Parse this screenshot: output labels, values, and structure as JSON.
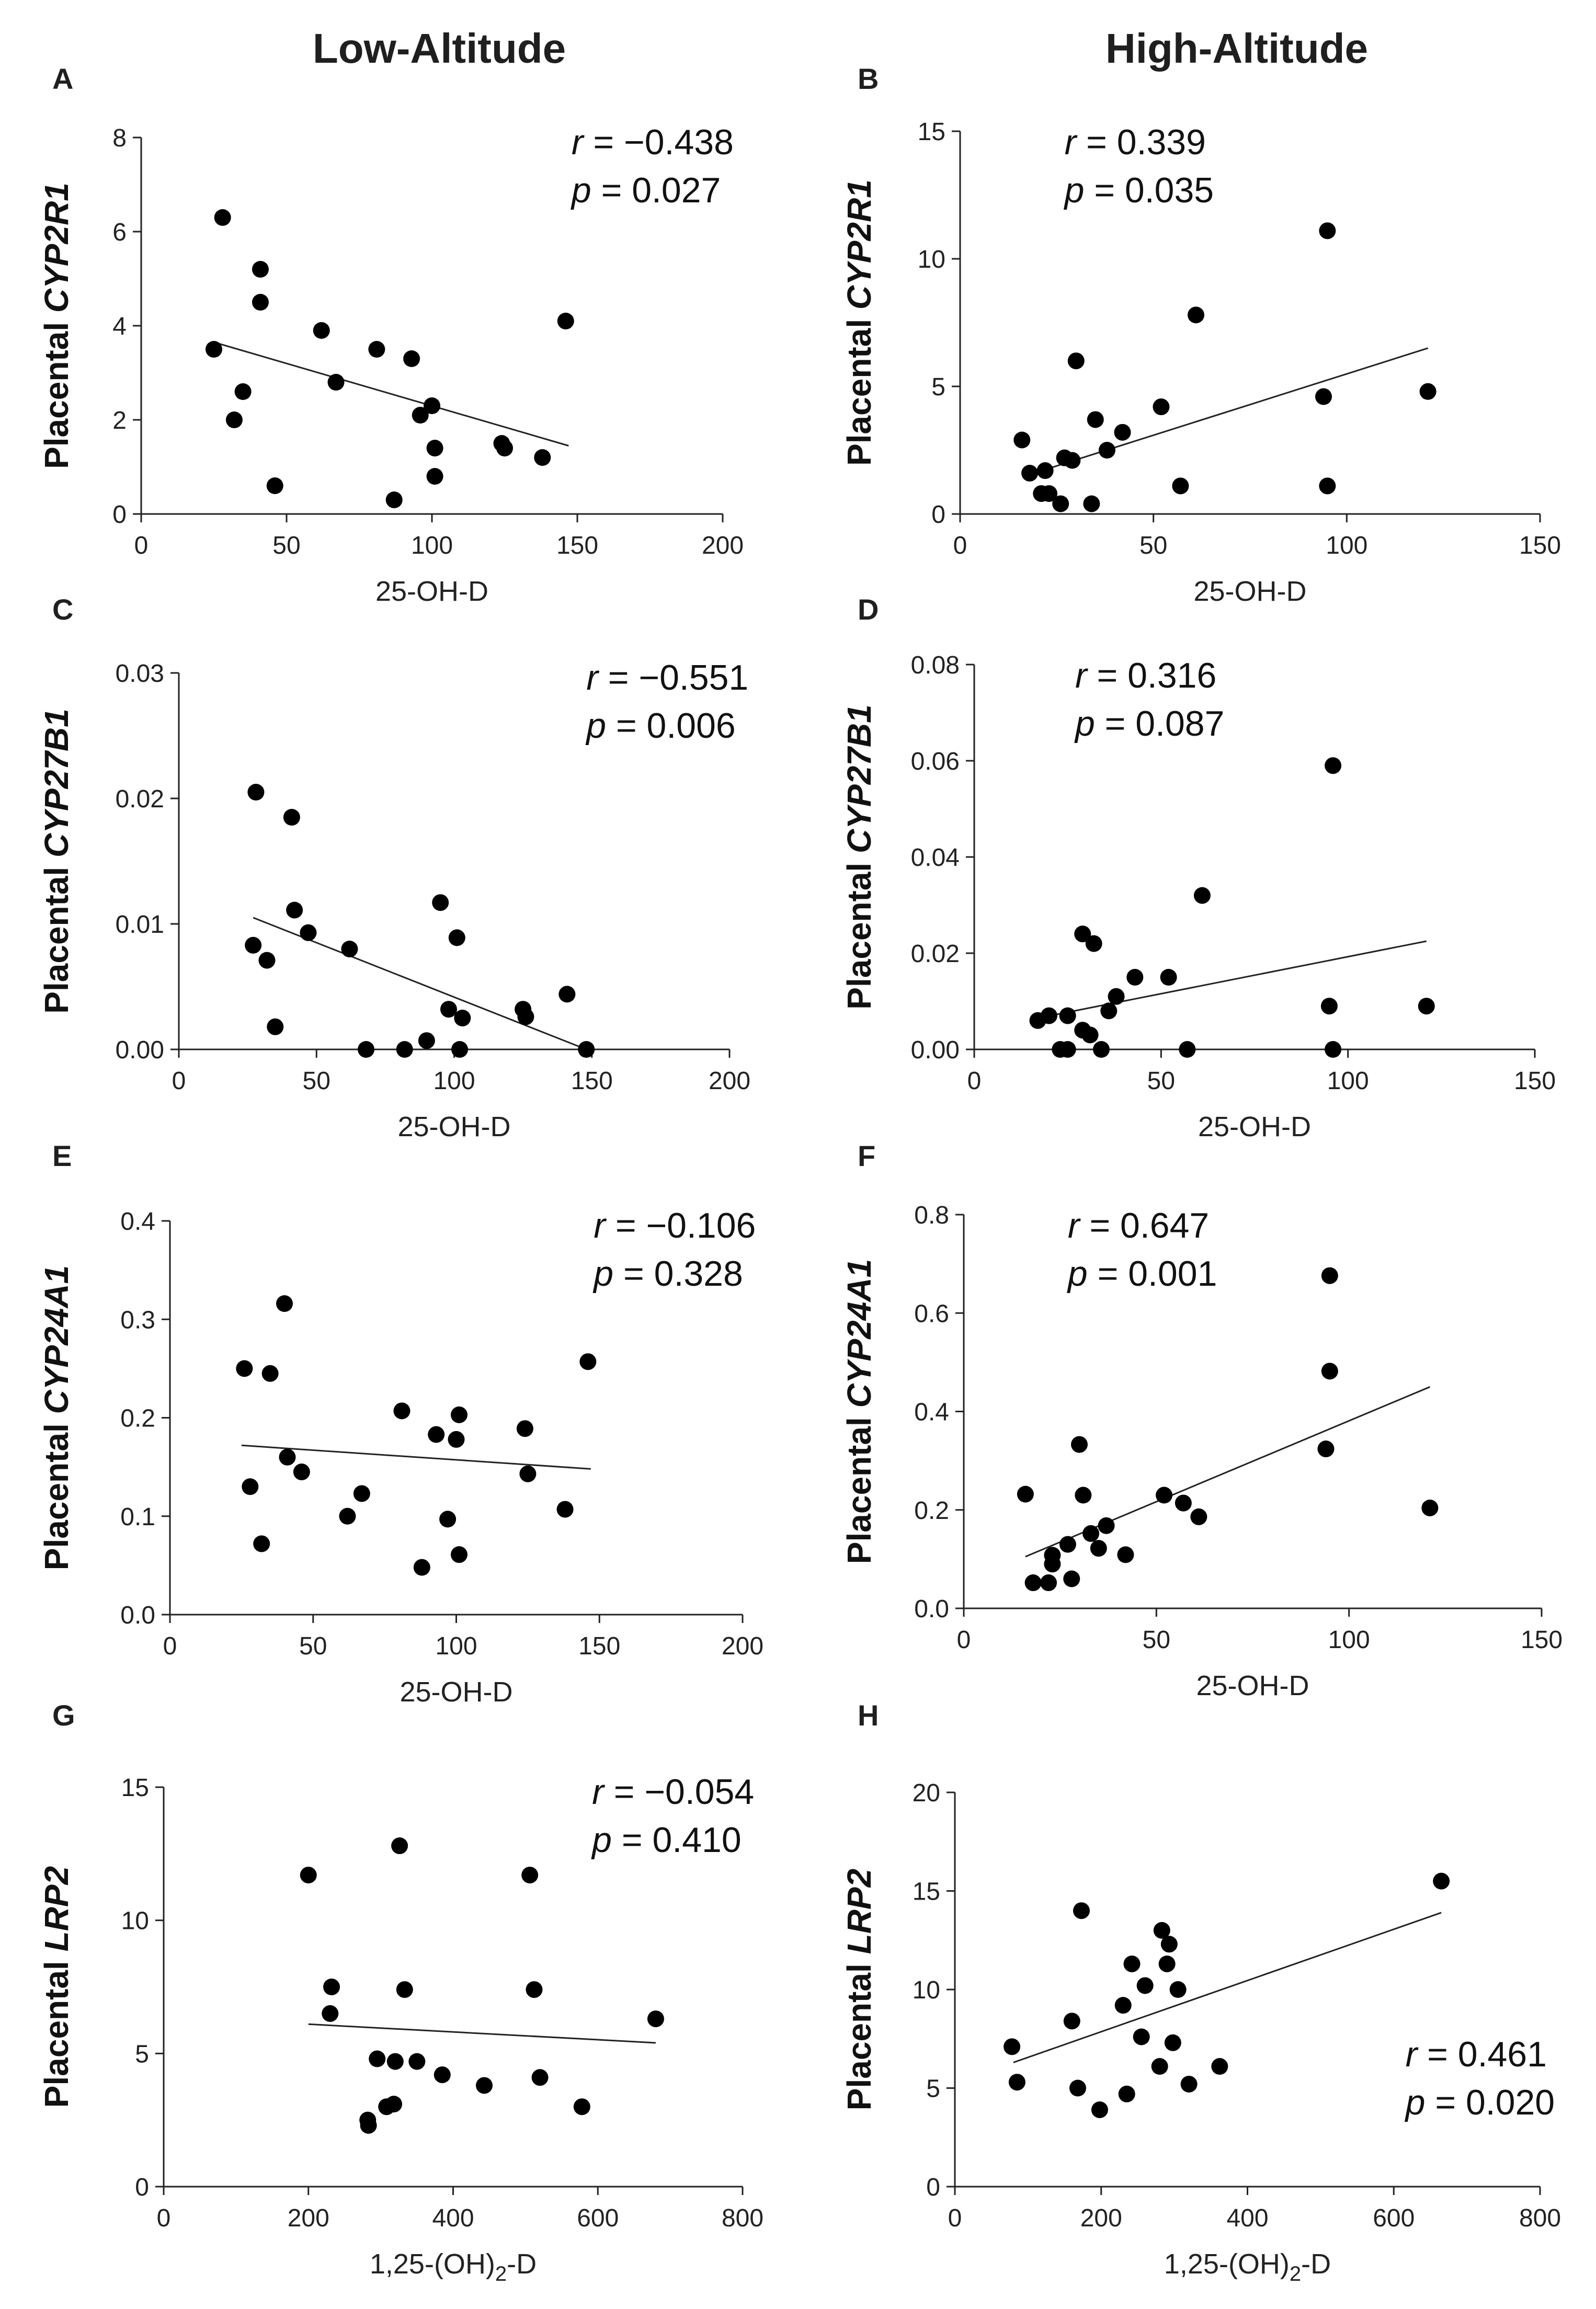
{
  "column_titles": {
    "low": "Low-Altitude",
    "high": "High-Altitude"
  },
  "chart_data": [
    {
      "panel": "A",
      "column": "Low-Altitude",
      "type": "scatter",
      "ylabel_prefix": "Placental ",
      "ylabel_gene": "CYP2R1",
      "xlabel": "25-OH-D",
      "xlabel_sub": "",
      "xlim": [
        0,
        200
      ],
      "ylim": [
        0,
        8
      ],
      "xticks": [
        0,
        50,
        100,
        150,
        200
      ],
      "yticks": [
        0,
        2,
        4,
        6,
        8
      ],
      "ytick_decimals": 0,
      "r_label": "r",
      "r_value": "= −0.438",
      "p_label": "p",
      "p_value": "= 0.027",
      "stats_position": "top-right",
      "fit_line": {
        "x": [
          25,
          147
        ],
        "y": [
          3.65,
          1.45
        ]
      },
      "points": [
        [
          28,
          6.3
        ],
        [
          41,
          5.2
        ],
        [
          41,
          4.5
        ],
        [
          25,
          3.5
        ],
        [
          35,
          2.6
        ],
        [
          32,
          2.0
        ],
        [
          46,
          0.6
        ],
        [
          62,
          3.9
        ],
        [
          67,
          2.8
        ],
        [
          81,
          3.5
        ],
        [
          87,
          0.3
        ],
        [
          93,
          3.3
        ],
        [
          96,
          2.1
        ],
        [
          100,
          2.3
        ],
        [
          101,
          1.4
        ],
        [
          101,
          0.8
        ],
        [
          124,
          1.5
        ],
        [
          125,
          1.4
        ],
        [
          138,
          1.2
        ],
        [
          146,
          4.1
        ]
      ]
    },
    {
      "panel": "B",
      "column": "High-Altitude",
      "type": "scatter",
      "ylabel_prefix": "Placental ",
      "ylabel_gene": "CYP2R1",
      "xlabel": "25-OH-D",
      "xlabel_sub": "",
      "xlim": [
        0,
        150
      ],
      "ylim": [
        0,
        15
      ],
      "xticks": [
        0,
        50,
        100,
        150
      ],
      "yticks": [
        0,
        5,
        10,
        15
      ],
      "ytick_decimals": 0,
      "r_label": "r",
      "r_value": "= 0.339",
      "p_label": "p",
      "p_value": "= 0.035",
      "stats_position": "top-left",
      "fit_line": {
        "x": [
          17,
          121
        ],
        "y": [
          1.5,
          6.5
        ]
      },
      "points": [
        [
          16,
          2.9
        ],
        [
          18,
          1.6
        ],
        [
          21,
          0.8
        ],
        [
          22,
          1.7
        ],
        [
          23,
          0.8
        ],
        [
          26,
          0.4
        ],
        [
          27,
          2.2
        ],
        [
          29,
          2.1
        ],
        [
          30,
          6.0
        ],
        [
          34,
          0.4
        ],
        [
          35,
          3.7
        ],
        [
          38,
          2.5
        ],
        [
          42,
          3.2
        ],
        [
          52,
          4.2
        ],
        [
          57,
          1.1
        ],
        [
          61,
          7.8
        ],
        [
          94,
          4.6
        ],
        [
          95,
          1.1
        ],
        [
          95,
          11.1
        ],
        [
          121,
          4.8
        ]
      ]
    },
    {
      "panel": "C",
      "column": "Low-Altitude",
      "type": "scatter",
      "ylabel_prefix": "Placental ",
      "ylabel_gene": "CYP27B1",
      "xlabel": "25-OH-D",
      "xlabel_sub": "",
      "xlim": [
        0,
        200
      ],
      "ylim": [
        0,
        0.03
      ],
      "xticks": [
        0,
        50,
        100,
        150,
        200
      ],
      "yticks": [
        0,
        0.01,
        0.02,
        0.03
      ],
      "ytick_decimals": 2,
      "r_label": "r",
      "r_value": "= −0.551",
      "p_label": "p",
      "p_value": "= 0.006",
      "stats_position": "top-right",
      "fit_line": {
        "x": [
          27,
          148
        ],
        "y": [
          0.0105,
          0.0
        ]
      },
      "points": [
        [
          27,
          0.0083
        ],
        [
          28,
          0.0205
        ],
        [
          32,
          0.0071
        ],
        [
          35,
          0.0018
        ],
        [
          41,
          0.0185
        ],
        [
          42,
          0.0111
        ],
        [
          47,
          0.0093
        ],
        [
          62,
          0.008
        ],
        [
          68,
          0.0
        ],
        [
          82,
          0.0
        ],
        [
          90,
          0.0007
        ],
        [
          95,
          0.0117
        ],
        [
          98,
          0.0032
        ],
        [
          101,
          0.0089
        ],
        [
          103,
          0.0025
        ],
        [
          102,
          0.0
        ],
        [
          125,
          0.0032
        ],
        [
          126,
          0.0026
        ],
        [
          141,
          0.0044
        ],
        [
          148,
          0.0
        ]
      ]
    },
    {
      "panel": "D",
      "column": "High-Altitude",
      "type": "scatter",
      "ylabel_prefix": "Placental ",
      "ylabel_gene": "CYP27B1",
      "xlabel": "25-OH-D",
      "xlabel_sub": "",
      "xlim": [
        0,
        150
      ],
      "ylim": [
        0,
        0.08
      ],
      "xticks": [
        0,
        50,
        100,
        150
      ],
      "yticks": [
        0,
        0.02,
        0.04,
        0.06,
        0.08
      ],
      "ytick_decimals": 2,
      "r_label": "r",
      "r_value": "= 0.316",
      "p_label": "p",
      "p_value": "= 0.087",
      "stats_position": "top-left",
      "fit_line": {
        "x": [
          17,
          121
        ],
        "y": [
          0.0065,
          0.0225
        ]
      },
      "points": [
        [
          17,
          0.006
        ],
        [
          20,
          0.007
        ],
        [
          23,
          0.0
        ],
        [
          25,
          0.0
        ],
        [
          25,
          0.007
        ],
        [
          29,
          0.004
        ],
        [
          29,
          0.024
        ],
        [
          31,
          0.003
        ],
        [
          32,
          0.022
        ],
        [
          34,
          0.0
        ],
        [
          36,
          0.008
        ],
        [
          38,
          0.011
        ],
        [
          43,
          0.015
        ],
        [
          52,
          0.015
        ],
        [
          57,
          0.0
        ],
        [
          61,
          0.032
        ],
        [
          95,
          0.009
        ],
        [
          96,
          0.0
        ],
        [
          96,
          0.059
        ],
        [
          121,
          0.009
        ]
      ]
    },
    {
      "panel": "E",
      "column": "Low-Altitude",
      "type": "scatter",
      "ylabel_prefix": "Placental ",
      "ylabel_gene": "CYP24A1",
      "xlabel": "25-OH-D",
      "xlabel_sub": "",
      "xlim": [
        0,
        200
      ],
      "ylim": [
        0,
        0.4
      ],
      "xticks": [
        0,
        50,
        100,
        150,
        200
      ],
      "yticks": [
        0,
        0.1,
        0.2,
        0.3,
        0.4
      ],
      "ytick_decimals": 1,
      "r_label": "r",
      "r_value": "= −0.106",
      "p_label": "p",
      "p_value": "= 0.328",
      "stats_position": "top-right",
      "fit_line": {
        "x": [
          25,
          147
        ],
        "y": [
          0.172,
          0.148
        ]
      },
      "points": [
        [
          26,
          0.25
        ],
        [
          28,
          0.13
        ],
        [
          32,
          0.072
        ],
        [
          35,
          0.245
        ],
        [
          40,
          0.316
        ],
        [
          41,
          0.16
        ],
        [
          46,
          0.145
        ],
        [
          62,
          0.1
        ],
        [
          67,
          0.123
        ],
        [
          81,
          0.207
        ],
        [
          88,
          0.048
        ],
        [
          93,
          0.183
        ],
        [
          97,
          0.097
        ],
        [
          100,
          0.178
        ],
        [
          101,
          0.203
        ],
        [
          101,
          0.061
        ],
        [
          124,
          0.189
        ],
        [
          125,
          0.143
        ],
        [
          138,
          0.107
        ],
        [
          146,
          0.257
        ]
      ]
    },
    {
      "panel": "F",
      "column": "High-Altitude",
      "type": "scatter",
      "ylabel_prefix": "Placental ",
      "ylabel_gene": "CYP24A1",
      "xlabel": "25-OH-D",
      "xlabel_sub": "",
      "xlim": [
        0,
        150
      ],
      "ylim": [
        0,
        0.8
      ],
      "xticks": [
        0,
        50,
        100,
        150
      ],
      "yticks": [
        0,
        0.2,
        0.4,
        0.6,
        0.8
      ],
      "ytick_decimals": 1,
      "r_label": "r",
      "r_value": "= 0.647",
      "p_label": "p",
      "p_value": "= 0.001",
      "stats_position": "top-left",
      "fit_line": {
        "x": [
          16,
          121
        ],
        "y": [
          0.105,
          0.45
        ]
      },
      "points": [
        [
          16,
          0.232
        ],
        [
          18,
          0.052
        ],
        [
          22,
          0.052
        ],
        [
          23,
          0.108
        ],
        [
          23,
          0.09
        ],
        [
          27,
          0.13
        ],
        [
          28,
          0.06
        ],
        [
          30,
          0.333
        ],
        [
          31,
          0.23
        ],
        [
          33,
          0.152
        ],
        [
          35,
          0.122
        ],
        [
          37,
          0.168
        ],
        [
          42,
          0.109
        ],
        [
          52,
          0.23
        ],
        [
          57,
          0.214
        ],
        [
          61,
          0.186
        ],
        [
          94,
          0.324
        ],
        [
          95,
          0.482
        ],
        [
          95,
          0.676
        ],
        [
          121,
          0.204
        ]
      ]
    },
    {
      "panel": "G",
      "column": "Low-Altitude",
      "type": "scatter",
      "ylabel_prefix": "Placental ",
      "ylabel_gene": "LRP2",
      "xlabel": "1,25-(OH)",
      "xlabel_sub": "2",
      "xlabel_suffix": "-D",
      "xlim": [
        0,
        800
      ],
      "ylim": [
        0,
        15
      ],
      "xticks": [
        0,
        200,
        400,
        600,
        800
      ],
      "yticks": [
        0,
        5,
        10,
        15
      ],
      "ytick_decimals": 0,
      "r_label": "r",
      "r_value": "= −0.054",
      "p_label": "p",
      "p_value": "= 0.410",
      "stats_position": "top-right",
      "fit_line": {
        "x": [
          200,
          680
        ],
        "y": [
          6.1,
          5.4
        ]
      },
      "points": [
        [
          200,
          11.7
        ],
        [
          232,
          7.5
        ],
        [
          230,
          6.5
        ],
        [
          282,
          2.5
        ],
        [
          283,
          2.3
        ],
        [
          295,
          4.8
        ],
        [
          308,
          3.0
        ],
        [
          318,
          3.1
        ],
        [
          320,
          4.7
        ],
        [
          326,
          12.8
        ],
        [
          333,
          7.4
        ],
        [
          350,
          4.7
        ],
        [
          385,
          4.2
        ],
        [
          443,
          3.8
        ],
        [
          506,
          11.7
        ],
        [
          512,
          7.4
        ],
        [
          520,
          4.1
        ],
        [
          578,
          3.0
        ],
        [
          680,
          6.3
        ]
      ]
    },
    {
      "panel": "H",
      "column": "High-Altitude",
      "type": "scatter",
      "ylabel_prefix": "Placental ",
      "ylabel_gene": "LRP2",
      "xlabel": "1,25-(OH)",
      "xlabel_sub": "2",
      "xlabel_suffix": "-D",
      "xlim": [
        0,
        800
      ],
      "ylim": [
        0,
        20
      ],
      "xticks": [
        0,
        200,
        400,
        600,
        800
      ],
      "yticks": [
        0,
        5,
        10,
        15,
        20
      ],
      "ytick_decimals": 0,
      "r_label": "r",
      "r_value": "= 0.461",
      "p_label": "p",
      "p_value": "= 0.020",
      "stats_position": "bottom-right",
      "fit_line": {
        "x": [
          80,
          665
        ],
        "y": [
          6.3,
          13.9
        ]
      },
      "points": [
        [
          78,
          7.1
        ],
        [
          85,
          5.3
        ],
        [
          160,
          8.4
        ],
        [
          168,
          5.0
        ],
        [
          173,
          14.0
        ],
        [
          198,
          3.9
        ],
        [
          230,
          9.2
        ],
        [
          235,
          4.7
        ],
        [
          242,
          11.3
        ],
        [
          255,
          7.6
        ],
        [
          260,
          10.2
        ],
        [
          280,
          6.1
        ],
        [
          283,
          13.0
        ],
        [
          290,
          11.3
        ],
        [
          293,
          12.3
        ],
        [
          298,
          7.3
        ],
        [
          305,
          10.0
        ],
        [
          320,
          5.2
        ],
        [
          362,
          6.1
        ],
        [
          665,
          15.5
        ]
      ]
    }
  ]
}
